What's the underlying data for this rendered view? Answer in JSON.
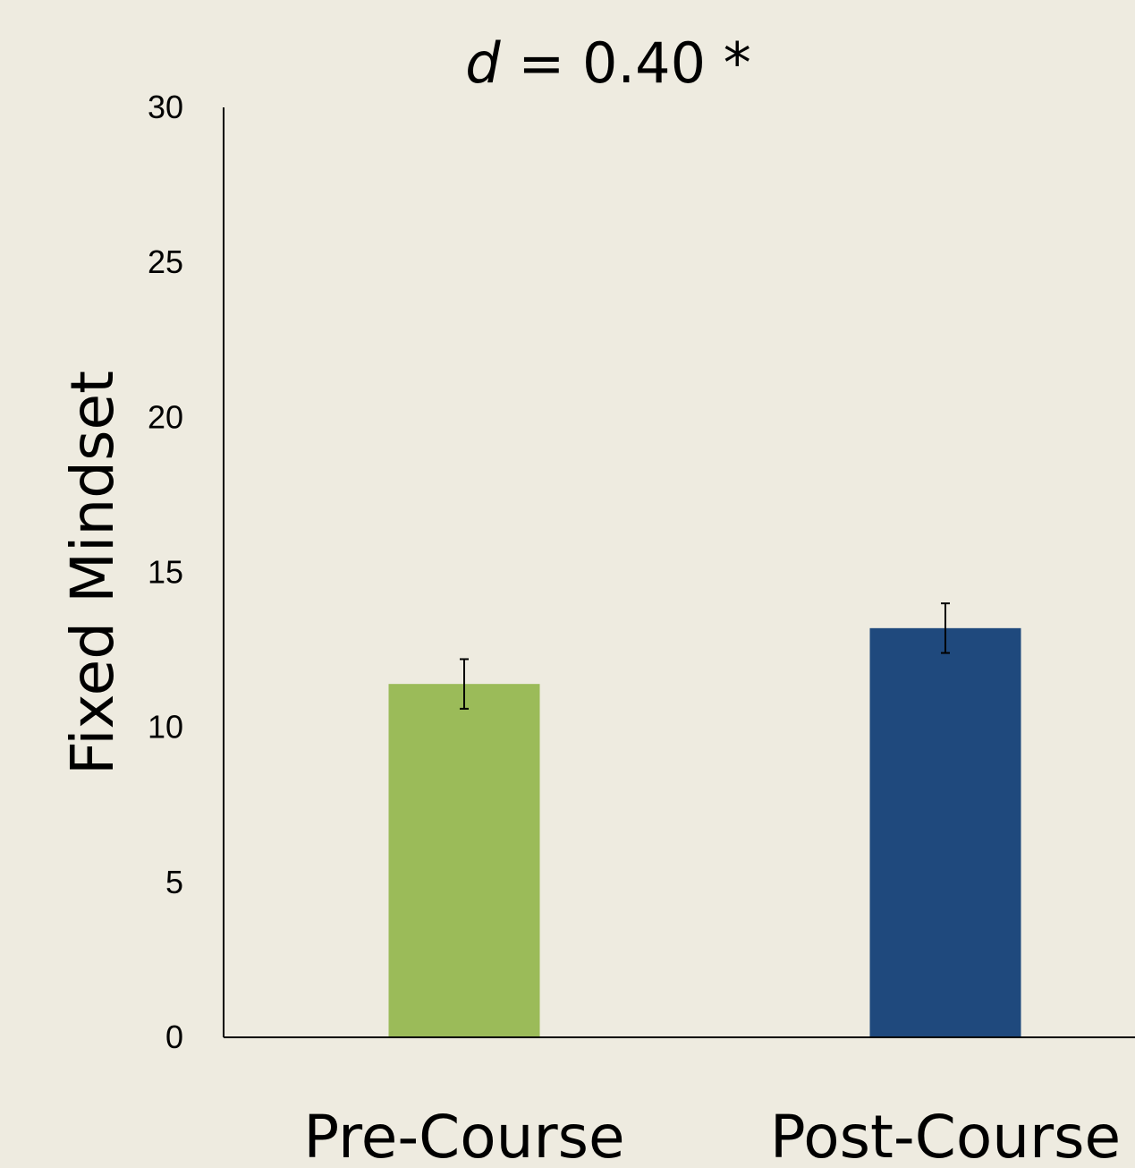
{
  "chart_data": {
    "type": "bar",
    "title_var": "d",
    "title_rest": " = 0.40 *",
    "xlabel": "",
    "ylabel": "Fixed Mindset",
    "ylim": [
      0,
      30
    ],
    "yticks": [
      0,
      5,
      10,
      15,
      20,
      25,
      30
    ],
    "grid": false,
    "legend": "none",
    "categories": [
      "Pre-Course",
      "Post-Course"
    ],
    "values": [
      11.4,
      13.2
    ],
    "error_low": [
      10.6,
      12.4
    ],
    "error_high": [
      12.2,
      14.0
    ],
    "colors": [
      "#9BBB59",
      "#1F497D"
    ],
    "background": "#EEEBE0"
  }
}
